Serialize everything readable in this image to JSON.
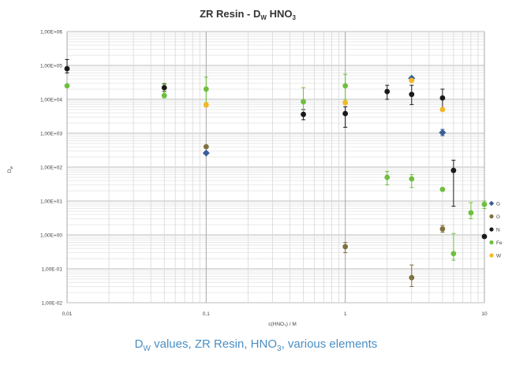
{
  "chart_data": {
    "type": "scatter",
    "title": "ZR Resin - D",
    "title_sub": "W",
    "title_suffix": " HNO",
    "title_sub2": "3",
    "xlabel": "c(HNO₃) / M",
    "ylabel": "D",
    "ylabel_sub": "w",
    "x_scale": "log",
    "y_scale": "log",
    "xlim": [
      0.01,
      10
    ],
    "ylim": [
      0.01,
      1000000
    ],
    "x_ticks": [
      {
        "v": 0.01,
        "label": "0,01"
      },
      {
        "v": 0.1,
        "label": "0,1"
      },
      {
        "v": 1,
        "label": "1"
      },
      {
        "v": 10,
        "label": "10"
      }
    ],
    "y_ticks": [
      {
        "v": 1000000,
        "label": "1,00E+06"
      },
      {
        "v": 100000,
        "label": "1,00E+05"
      },
      {
        "v": 10000,
        "label": "1,00E+04"
      },
      {
        "v": 1000,
        "label": "1,00E+03"
      },
      {
        "v": 100,
        "label": "1,00E+02"
      },
      {
        "v": 10,
        "label": "1,00E+01"
      },
      {
        "v": 1,
        "label": "1,00E+00"
      },
      {
        "v": 0.1,
        "label": "1,00E-01"
      },
      {
        "v": 0.01,
        "label": "1,00E-02"
      }
    ],
    "grid": true,
    "legend_position": "right",
    "series": [
      {
        "name": "G",
        "color": "#3b5e9a",
        "marker": "diamond",
        "points": [
          [
            0.1,
            260,
            260,
            260
          ],
          [
            3,
            42000,
            42000,
            42000
          ],
          [
            5,
            1050,
            850,
            1300
          ]
        ]
      },
      {
        "name": "G",
        "color": "#7f7240",
        "marker": "circle",
        "points": [
          [
            0.1,
            400,
            400,
            400
          ],
          [
            1,
            0.45,
            0.3,
            0.6
          ],
          [
            3,
            0.055,
            0.03,
            0.13
          ],
          [
            5,
            1.5,
            1.2,
            1.9
          ]
        ]
      },
      {
        "name": "N",
        "color": "#1a1a1a",
        "marker": "circle",
        "points": [
          [
            0.01,
            80000,
            60000,
            150000
          ],
          [
            0.05,
            22000,
            17000,
            28000
          ],
          [
            0.5,
            3600,
            2500,
            5000
          ],
          [
            1,
            3800,
            1500,
            6000
          ],
          [
            2,
            17000,
            10000,
            26000
          ],
          [
            3,
            14000,
            7000,
            26000
          ],
          [
            5,
            11000,
            5000,
            20000
          ],
          [
            6,
            80,
            7,
            160
          ],
          [
            10,
            0.9,
            0.9,
            0.9
          ]
        ]
      },
      {
        "name": "Fe",
        "color": "#6fbf3f",
        "marker": "circle",
        "points": [
          [
            0.01,
            25000,
            25000,
            25000
          ],
          [
            0.05,
            13000,
            11000,
            30000
          ],
          [
            0.1,
            20000,
            8000,
            45000
          ],
          [
            0.5,
            8500,
            4000,
            22000
          ],
          [
            1,
            25000,
            10000,
            55000
          ],
          [
            2,
            50,
            30,
            75
          ],
          [
            3,
            45,
            25,
            60
          ],
          [
            5,
            22,
            22,
            22
          ],
          [
            6,
            0.28,
            0.18,
            1.1
          ],
          [
            8,
            4.5,
            3,
            9
          ],
          [
            10,
            8,
            6,
            10
          ]
        ]
      },
      {
        "name": "W",
        "color": "#f2b825",
        "marker": "circle",
        "points": [
          [
            0.1,
            6800,
            6000,
            8000
          ],
          [
            1,
            8000,
            7000,
            9000
          ],
          [
            3,
            36000,
            32000,
            40000
          ],
          [
            5,
            5000,
            4500,
            5500
          ]
        ]
      }
    ]
  },
  "caption": {
    "prefix": "D",
    "sub": "W",
    "middle": " values, ZR Resin, HNO",
    "sub2": "3",
    "suffix": ", various elements"
  }
}
